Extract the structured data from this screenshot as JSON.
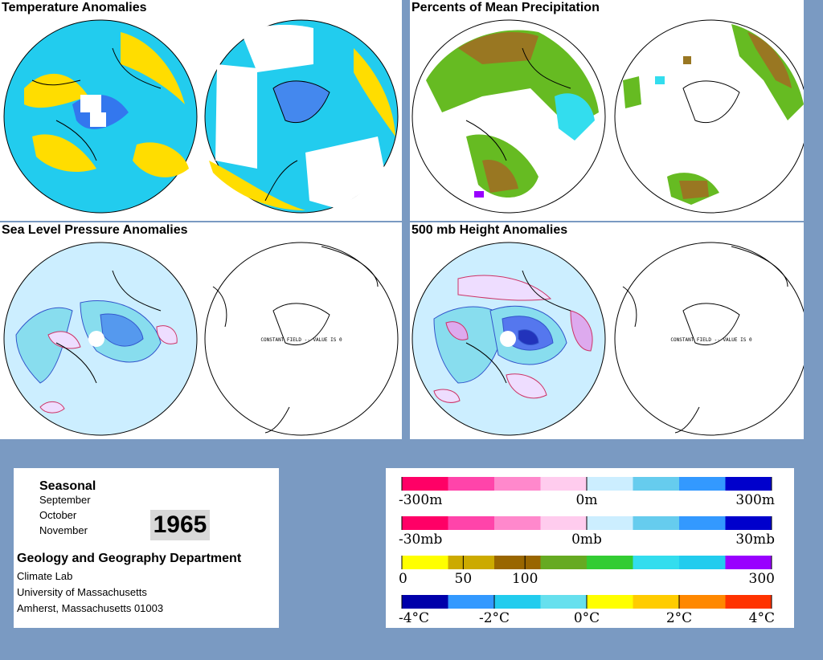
{
  "panels": {
    "temperature": {
      "title": "Temperature Anomalies"
    },
    "precipitation": {
      "title": "Percents of Mean Precipitation"
    },
    "slp": {
      "title": "Sea Level Pressure Anomalies",
      "constant_field": "CONSTANT FIELD -- VALUE IS 0"
    },
    "height500": {
      "title": "500 mb Height Anomalies",
      "constant_field": "CONSTANT FIELD -- VALUE IS 0"
    }
  },
  "info": {
    "season_label": "Seasonal",
    "months": [
      "September",
      "October",
      "November"
    ],
    "year": "1965",
    "department": "Geology and Geography Department",
    "address_lines": [
      "Climate Lab",
      "University of Massachusetts",
      "Amherst, Massachusetts 01003"
    ]
  },
  "legends": [
    {
      "name": "height",
      "colors": [
        "#ff0066",
        "#ff44aa",
        "#ff88cc",
        "#ffccee",
        "#cceeff",
        "#66ccee",
        "#3399ff",
        "#0000cc"
      ],
      "ticks": [
        {
          "v": 0,
          "label": "-300m"
        },
        {
          "v": 0.5,
          "label": "0m"
        },
        {
          "v": 1,
          "label": "300m"
        }
      ]
    },
    {
      "name": "pressure",
      "colors": [
        "#ff0066",
        "#ff44aa",
        "#ff88cc",
        "#ffccee",
        "#cceeff",
        "#66ccee",
        "#3399ff",
        "#0000cc"
      ],
      "ticks": [
        {
          "v": 0,
          "label": "-30mb"
        },
        {
          "v": 0.5,
          "label": "0mb"
        },
        {
          "v": 1,
          "label": "30mb"
        }
      ]
    },
    {
      "name": "precip",
      "colors": [
        "#ffff00",
        "#ccaa00",
        "#996600",
        "#66aa22",
        "#33cc33",
        "#33ddee",
        "#22ccee",
        "#9900ff"
      ],
      "ticks": [
        {
          "v": 0,
          "label": "0"
        },
        {
          "v": 0.166,
          "label": "50"
        },
        {
          "v": 0.333,
          "label": "100"
        },
        {
          "v": 1,
          "label": "300"
        }
      ]
    },
    {
      "name": "temperature",
      "colors": [
        "#0000aa",
        "#3399ff",
        "#22ccee",
        "#66e0ee",
        "#ffff00",
        "#ffcc00",
        "#ff8800",
        "#ff3300"
      ],
      "ticks": [
        {
          "v": 0,
          "label": "-4°C"
        },
        {
          "v": 0.25,
          "label": "-2°C"
        },
        {
          "v": 0.5,
          "label": "0°C"
        },
        {
          "v": 0.75,
          "label": "2°C"
        },
        {
          "v": 1,
          "label": "4°C"
        }
      ]
    }
  ],
  "colors": {
    "background": "#7a9ac2",
    "temp_ocean": "#22ccee",
    "temp_warm": "#ffdd00",
    "precip_green": "#66bb22",
    "slp_light": "#cceeff",
    "slp_mid": "#88ddee",
    "contour_neg": "#cc3366",
    "contour_pos": "#3355cc"
  }
}
